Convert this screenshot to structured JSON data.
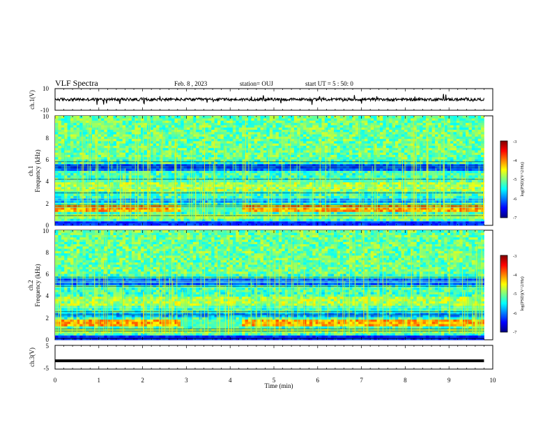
{
  "header": {
    "title": "VLF Spectra",
    "date": "Feb. 8 , 2023",
    "station": "station= OUJ",
    "start_ut": "start UT =  5 : 50: 0"
  },
  "chart_data": [
    {
      "type": "line",
      "panel": "ch1-waveform",
      "ylabel": "ch.1(V)",
      "ylim": [
        -10,
        10
      ],
      "y_tick_labels": [
        "10",
        "-10"
      ],
      "series": [
        {
          "values": [
            {
              "t_min": 0,
              "v": 0
            },
            {
              "t_min": 9.8,
              "v": 0
            }
          ]
        }
      ]
    },
    {
      "type": "heatmap",
      "panel": "ch1-spectrogram",
      "ylabel_line1": "ch.1",
      "ylabel_line2": "Frequency (kHz)",
      "ylim_khz": [
        0,
        10
      ],
      "y_tick_labels": [
        "0",
        "2",
        "4",
        "6",
        "8",
        "10"
      ],
      "colorbar": {
        "label": "log(PSD)(V^2/Hz)",
        "range": [
          -7,
          -3
        ],
        "tick_labels": [
          "-3",
          "-4",
          "-5",
          "-6",
          "-7"
        ]
      },
      "features": {
        "band_khz": [
          1.3,
          1.9
        ],
        "band_gap_min": [
          2.9,
          4.25
        ],
        "dark_band_khz": [
          4.9,
          5.6
        ]
      }
    },
    {
      "type": "heatmap",
      "panel": "ch2-spectrogram",
      "ylabel_line1": "ch.2",
      "ylabel_line2": "Frequency (kHz)",
      "ylim_khz": [
        0,
        10
      ],
      "y_tick_labels": [
        "0",
        "2",
        "4",
        "6",
        "8",
        "10"
      ],
      "colorbar": {
        "label": "log(PSD)(V^2/Hz)",
        "range": [
          -7,
          -3
        ],
        "tick_labels": [
          "-3",
          "-4",
          "-5",
          "-6",
          "-7"
        ]
      },
      "features": {
        "band_khz": [
          1.2,
          1.8
        ],
        "band_gap_min": [
          2.9,
          4.25
        ],
        "dark_band_khz": [
          5.0,
          5.7
        ]
      }
    },
    {
      "type": "line",
      "panel": "ch3-waveform",
      "ylabel": "ch.3(V)",
      "ylim": [
        -5,
        5
      ],
      "y_tick_labels": [
        "5",
        "-5"
      ],
      "series": [
        {
          "values": [
            {
              "t_min": 0,
              "v": -1.5
            },
            {
              "t_min": 9.8,
              "v": -1.5
            }
          ]
        }
      ]
    }
  ],
  "x_axis": {
    "label": "Time (min)",
    "range": [
      0,
      10
    ],
    "tick_labels": [
      "0",
      "1",
      "2",
      "3",
      "4",
      "5",
      "6",
      "7",
      "8",
      "9",
      "10"
    ]
  },
  "colors": {
    "frame": "#000000",
    "background": "#ffffff",
    "colormap": [
      "#00007f",
      "#0000ff",
      "#007fff",
      "#00ffff",
      "#7fff7f",
      "#ffff00",
      "#ff7f00",
      "#ff0000",
      "#7f0000"
    ]
  }
}
